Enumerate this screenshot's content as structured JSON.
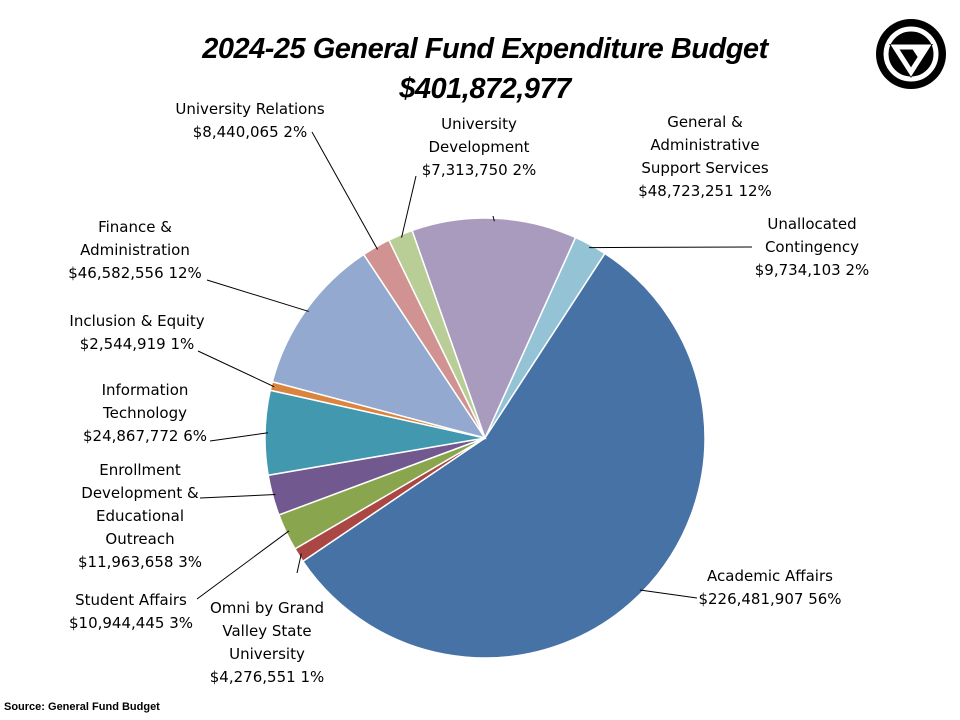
{
  "chart_data": {
    "type": "pie",
    "title": "2024-25 General Fund Expenditure Budget",
    "subtitle": "$401,872,977",
    "slices": [
      {
        "label": "Unallocated Contingency",
        "value": 9734103,
        "value_label": "$9,734,103",
        "percent": "2%",
        "color": "#93C3D5"
      },
      {
        "label": "Academic Affairs",
        "value": 226481907,
        "value_label": "$226,481,907",
        "percent": "56%",
        "color": "#4672A6"
      },
      {
        "label": "Omni by Grand Valley State University",
        "value": 4276551,
        "value_label": "$4,276,551",
        "percent": "1%",
        "color": "#AA4643"
      },
      {
        "label": "Student Affairs",
        "value": 10944445,
        "value_label": "$10,944,445",
        "percent": "3%",
        "color": "#89A54E"
      },
      {
        "label": "Enrollment Development & Educational Outreach",
        "value": 11963658,
        "value_label": "$11,963,658",
        "percent": "3%",
        "color": "#71588F"
      },
      {
        "label": "Information Technology",
        "value": 24867772,
        "value_label": "$24,867,772",
        "percent": "6%",
        "color": "#4198AF"
      },
      {
        "label": "Inclusion & Equity",
        "value": 2544919,
        "value_label": "$2,544,919",
        "percent": "1%",
        "color": "#DB843D"
      },
      {
        "label": "Finance & Administration",
        "value": 46582556,
        "value_label": "$46,582,556",
        "percent": "12%",
        "color": "#93A9CF"
      },
      {
        "label": "University Relations",
        "value": 8440065,
        "value_label": "$8,440,065",
        "percent": "2%",
        "color": "#D19392"
      },
      {
        "label": "University Development",
        "value": 7313750,
        "value_label": "$7,313,750",
        "percent": "2%",
        "color": "#B9CD96"
      },
      {
        "label": "General & Administrative Support Services",
        "value": 48723251,
        "value_label": "$48,723,251",
        "percent": "12%",
        "color": "#A99BBD"
      }
    ],
    "legend": "none (data labels with leader lines)"
  },
  "source": "Source: General Fund Budget",
  "logo": {
    "name": "Grand Valley State University logo",
    "icon": "gv-logo-icon"
  }
}
